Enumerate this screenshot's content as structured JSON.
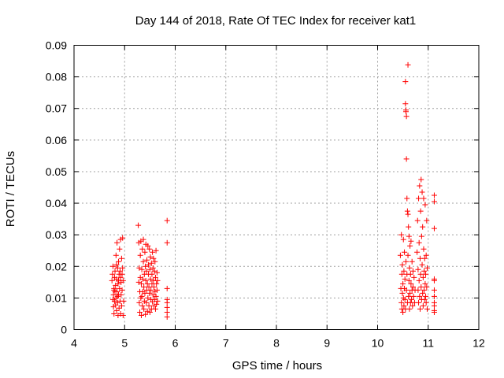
{
  "chart_data": {
    "type": "scatter",
    "title": "Day 144 of 2018, Rate Of TEC Index for receiver kat1",
    "xlabel": "GPS time / hours",
    "ylabel": "ROTI / TECUs",
    "xlim": [
      4,
      12
    ],
    "ylim": [
      0,
      0.09
    ],
    "x_ticks": [
      "4",
      "5",
      "6",
      "7",
      "8",
      "9",
      "10",
      "11",
      "12"
    ],
    "y_ticks": [
      "0",
      "0.01",
      "0.02",
      "0.03",
      "0.04",
      "0.05",
      "0.06",
      "0.07",
      "0.08",
      "0.09"
    ],
    "grid": true,
    "marker": "+",
    "color": "#ff0000",
    "series": [
      {
        "name": "ROTI",
        "points": [
          [
            4.75,
            0.0155
          ],
          [
            4.76,
            0.0175
          ],
          [
            4.77,
            0.0095
          ],
          [
            4.77,
            0.02
          ],
          [
            4.78,
            0.011
          ],
          [
            4.78,
            0.0072
          ],
          [
            4.79,
            0.013
          ],
          [
            4.79,
            0.005
          ],
          [
            4.8,
            0.0165
          ],
          [
            4.8,
            0.009
          ],
          [
            4.81,
            0.0185
          ],
          [
            4.81,
            0.012
          ],
          [
            4.82,
            0.0078
          ],
          [
            4.82,
            0.014
          ],
          [
            4.83,
            0.0235
          ],
          [
            4.83,
            0.01
          ],
          [
            4.84,
            0.016
          ],
          [
            4.84,
            0.006
          ],
          [
            4.85,
            0.0275
          ],
          [
            4.85,
            0.012
          ],
          [
            4.86,
            0.0195
          ],
          [
            4.86,
            0.0085
          ],
          [
            4.87,
            0.0145
          ],
          [
            4.87,
            0.0045
          ],
          [
            4.88,
            0.0215
          ],
          [
            4.88,
            0.011
          ],
          [
            4.89,
            0.0175
          ],
          [
            4.89,
            0.0068
          ],
          [
            4.9,
            0.0255
          ],
          [
            4.9,
            0.013
          ],
          [
            4.91,
            0.009
          ],
          [
            4.91,
            0.0185
          ],
          [
            4.92,
            0.0285
          ],
          [
            4.92,
            0.005
          ],
          [
            4.93,
            0.015
          ],
          [
            4.93,
            0.011
          ],
          [
            4.94,
            0.0225
          ],
          [
            4.94,
            0.0075
          ],
          [
            4.95,
            0.0175
          ],
          [
            4.95,
            0.0125
          ],
          [
            4.96,
            0.029
          ],
          [
            4.96,
            0.0195
          ],
          [
            4.97,
            0.0045
          ],
          [
            4.97,
            0.0155
          ],
          [
            4.98,
            0.009
          ],
          [
            4.79,
            0.0125
          ],
          [
            4.84,
            0.0205
          ],
          [
            4.88,
            0.0155
          ],
          [
            4.92,
            0.0165
          ],
          [
            4.86,
            0.0105
          ],
          [
            5.27,
            0.033
          ],
          [
            5.28,
            0.0275
          ],
          [
            5.28,
            0.015
          ],
          [
            5.29,
            0.0085
          ],
          [
            5.29,
            0.0195
          ],
          [
            5.3,
            0.012
          ],
          [
            5.3,
            0.0055
          ],
          [
            5.31,
            0.0235
          ],
          [
            5.31,
            0.0165
          ],
          [
            5.32,
            0.01
          ],
          [
            5.32,
            0.028
          ],
          [
            5.33,
            0.0145
          ],
          [
            5.33,
            0.0045
          ],
          [
            5.34,
            0.019
          ],
          [
            5.34,
            0.0105
          ],
          [
            5.35,
            0.0255
          ],
          [
            5.35,
            0.0075
          ],
          [
            5.36,
            0.016
          ],
          [
            5.36,
            0.012
          ],
          [
            5.37,
            0.0285
          ],
          [
            5.37,
            0.0215
          ],
          [
            5.38,
            0.0065
          ],
          [
            5.38,
            0.0135
          ],
          [
            5.39,
            0.0175
          ],
          [
            5.39,
            0.009
          ],
          [
            5.4,
            0.0245
          ],
          [
            5.4,
            0.0115
          ],
          [
            5.41,
            0.02
          ],
          [
            5.41,
            0.0048
          ],
          [
            5.42,
            0.0155
          ],
          [
            5.42,
            0.027
          ],
          [
            5.43,
            0.0085
          ],
          [
            5.43,
            0.0185
          ],
          [
            5.44,
            0.0125
          ],
          [
            5.44,
            0.022
          ],
          [
            5.45,
            0.0058
          ],
          [
            5.45,
            0.0145
          ],
          [
            5.46,
            0.0265
          ],
          [
            5.46,
            0.01
          ],
          [
            5.47,
            0.0175
          ],
          [
            5.47,
            0.0205
          ],
          [
            5.48,
            0.0075
          ],
          [
            5.48,
            0.0135
          ],
          [
            5.49,
            0.0255
          ],
          [
            5.49,
            0.0115
          ],
          [
            5.5,
            0.019
          ],
          [
            5.5,
            0.0055
          ],
          [
            5.51,
            0.016
          ],
          [
            5.51,
            0.023
          ],
          [
            5.52,
            0.0095
          ],
          [
            5.52,
            0.0125
          ],
          [
            5.53,
            0.021
          ],
          [
            5.53,
            0.0065
          ],
          [
            5.54,
            0.0175
          ],
          [
            5.54,
            0.0145
          ],
          [
            5.55,
            0.0245
          ],
          [
            5.55,
            0.0088
          ],
          [
            5.56,
            0.0195
          ],
          [
            5.56,
            0.011
          ],
          [
            5.57,
            0.0155
          ],
          [
            5.57,
            0.0225
          ],
          [
            5.58,
            0.0075
          ],
          [
            5.58,
            0.0135
          ],
          [
            5.59,
            0.0185
          ],
          [
            5.59,
            0.0095
          ],
          [
            5.6,
            0.0215
          ],
          [
            5.6,
            0.012
          ],
          [
            5.61,
            0.0065
          ],
          [
            5.61,
            0.0165
          ],
          [
            5.62,
            0.025
          ],
          [
            5.62,
            0.0105
          ],
          [
            5.63,
            0.0145
          ],
          [
            5.63,
            0.008
          ],
          [
            5.64,
            0.018
          ],
          [
            5.64,
            0.0125
          ],
          [
            5.65,
            0.009
          ],
          [
            5.65,
            0.0155
          ],
          [
            5.84,
            0.0345
          ],
          [
            5.84,
            0.0275
          ],
          [
            5.84,
            0.013
          ],
          [
            5.84,
            0.0095
          ],
          [
            5.84,
            0.0085
          ],
          [
            5.84,
            0.007
          ],
          [
            5.84,
            0.0055
          ],
          [
            5.84,
            0.004
          ],
          [
            10.45,
            0.0235
          ],
          [
            10.46,
            0.013
          ],
          [
            10.47,
            0.0085
          ],
          [
            10.47,
            0.03
          ],
          [
            10.48,
            0.0175
          ],
          [
            10.48,
            0.0065
          ],
          [
            10.49,
            0.0115
          ],
          [
            10.49,
            0.0205
          ],
          [
            10.5,
            0.0145
          ],
          [
            10.5,
            0.0055
          ],
          [
            10.51,
            0.0285
          ],
          [
            10.51,
            0.01
          ],
          [
            10.52,
            0.0185
          ],
          [
            10.52,
            0.0075
          ],
          [
            10.53,
            0.013
          ],
          [
            10.53,
            0.0245
          ],
          [
            10.54,
            0.0095
          ],
          [
            10.54,
            0.016
          ],
          [
            10.55,
            0.0785
          ],
          [
            10.55,
            0.0715
          ],
          [
            10.55,
            0.0065
          ],
          [
            10.56,
            0.069
          ],
          [
            10.56,
            0.0695
          ],
          [
            10.56,
            0.0215
          ],
          [
            10.57,
            0.0675
          ],
          [
            10.57,
            0.0125
          ],
          [
            10.57,
            0.054
          ],
          [
            10.58,
            0.0415
          ],
          [
            10.58,
            0.0175
          ],
          [
            10.59,
            0.0085
          ],
          [
            10.59,
            0.0375
          ],
          [
            10.6,
            0.0365
          ],
          [
            10.6,
            0.0235
          ],
          [
            10.6,
            0.0838
          ],
          [
            10.61,
            0.0105
          ],
          [
            10.61,
            0.0325
          ],
          [
            10.62,
            0.0295
          ],
          [
            10.62,
            0.0155
          ],
          [
            10.63,
            0.0065
          ],
          [
            10.63,
            0.0195
          ],
          [
            10.64,
            0.0265
          ],
          [
            10.64,
            0.0115
          ],
          [
            10.65,
            0.0085
          ],
          [
            10.65,
            0.0175
          ],
          [
            10.66,
            0.0145
          ],
          [
            10.66,
            0.028
          ],
          [
            10.67,
            0.0095
          ],
          [
            10.68,
            0.0125
          ],
          [
            10.68,
            0.0215
          ],
          [
            10.69,
            0.0075
          ],
          [
            10.7,
            0.0135
          ],
          [
            10.7,
            0.0185
          ],
          [
            10.71,
            0.0105
          ],
          [
            10.72,
            0.0165
          ],
          [
            10.73,
            0.0085
          ],
          [
            10.74,
            0.0125
          ],
          [
            10.78,
            0.0245
          ],
          [
            10.79,
            0.0345
          ],
          [
            10.8,
            0.0125
          ],
          [
            10.8,
            0.019
          ],
          [
            10.81,
            0.0415
          ],
          [
            10.81,
            0.0085
          ],
          [
            10.82,
            0.0275
          ],
          [
            10.82,
            0.0155
          ],
          [
            10.83,
            0.0455
          ],
          [
            10.83,
            0.0105
          ],
          [
            10.84,
            0.0225
          ],
          [
            10.84,
            0.0065
          ],
          [
            10.85,
            0.0375
          ],
          [
            10.85,
            0.0175
          ],
          [
            10.86,
            0.0475
          ],
          [
            10.86,
            0.0135
          ],
          [
            10.87,
            0.0295
          ],
          [
            10.87,
            0.0095
          ],
          [
            10.88,
            0.0435
          ],
          [
            10.88,
            0.0205
          ],
          [
            10.89,
            0.0115
          ],
          [
            10.89,
            0.0325
          ],
          [
            10.9,
            0.0165
          ],
          [
            10.9,
            0.0075
          ],
          [
            10.91,
            0.0255
          ],
          [
            10.91,
            0.0415
          ],
          [
            10.92,
            0.0125
          ],
          [
            10.92,
            0.0185
          ],
          [
            10.93,
            0.0225
          ],
          [
            10.93,
            0.0095
          ],
          [
            10.94,
            0.0395
          ],
          [
            10.94,
            0.0145
          ],
          [
            10.95,
            0.0105
          ],
          [
            10.95,
            0.0175
          ],
          [
            10.96,
            0.0235
          ],
          [
            10.96,
            0.0085
          ],
          [
            10.97,
            0.0135
          ],
          [
            10.97,
            0.0345
          ],
          [
            10.98,
            0.0065
          ],
          [
            10.98,
            0.0195
          ],
          [
            11.12,
            0.0425
          ],
          [
            11.12,
            0.0405
          ],
          [
            11.12,
            0.032
          ],
          [
            11.12,
            0.016
          ],
          [
            11.12,
            0.0155
          ],
          [
            11.12,
            0.0125
          ],
          [
            11.12,
            0.0105
          ],
          [
            11.12,
            0.0085
          ],
          [
            11.12,
            0.0075
          ],
          [
            11.12,
            0.006
          ],
          [
            11.12,
            0.0055
          ]
        ]
      }
    ]
  }
}
